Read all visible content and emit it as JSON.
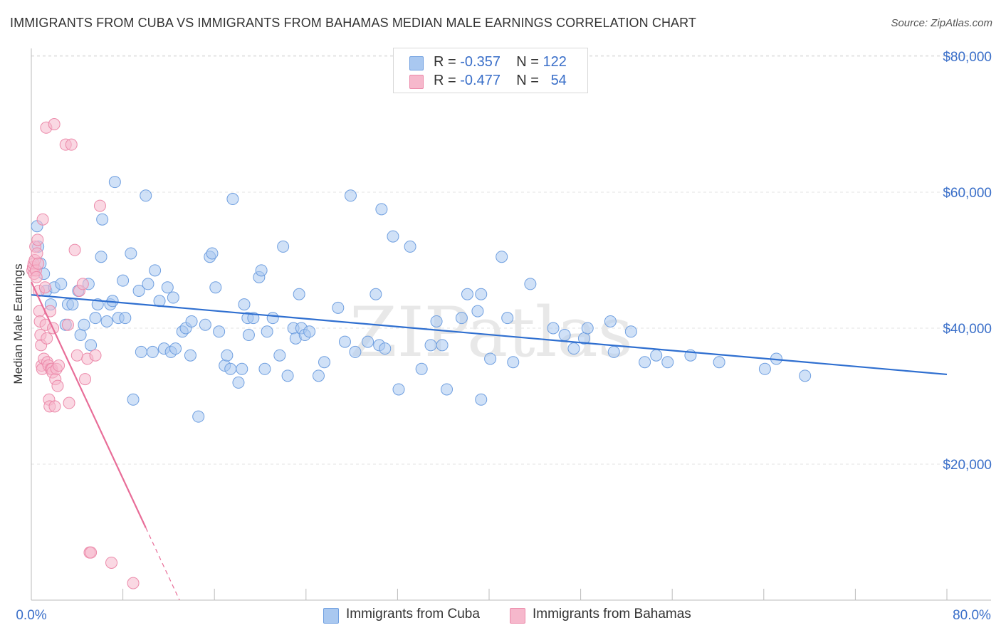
{
  "title": "IMMIGRANTS FROM CUBA VS IMMIGRANTS FROM BAHAMAS MEDIAN MALE EARNINGS CORRELATION CHART",
  "source": "Source: ZipAtlas.com",
  "watermark": "ZIPatlas",
  "legend": {
    "rows": [
      {
        "r_label": "R =",
        "r_value": "-0.357",
        "n_label": "N =",
        "n_value": "122"
      },
      {
        "r_label": "R =",
        "r_value": "-0.477",
        "n_label": "N =",
        "n_value": "54"
      }
    ]
  },
  "colors": {
    "cuba_fill": "#a9c8f0",
    "cuba_stroke": "#6f9fe0",
    "cuba_line": "#2f6fd0",
    "bahamas_fill": "#f6b8cc",
    "bahamas_stroke": "#ec8aaa",
    "bahamas_line": "#e86d98",
    "axis_text": "#3a6fc9",
    "grid": "#e3e3e3"
  },
  "chart_data": {
    "type": "scatter",
    "title": "IMMIGRANTS FROM CUBA VS IMMIGRANTS FROM BAHAMAS MEDIAN MALE EARNINGS CORRELATION CHART",
    "xlabel": "",
    "ylabel": "Median Male Earnings",
    "xlim": [
      0,
      80
    ],
    "ylim": [
      0,
      82000
    ],
    "x_tick_labels": [
      "0.0%",
      "80.0%"
    ],
    "y_ticks": [
      20000,
      40000,
      60000,
      80000
    ],
    "y_tick_labels": [
      "$20,000",
      "$40,000",
      "$60,000",
      "$80,000"
    ],
    "grid": true,
    "legend_position": "bottom",
    "series": [
      {
        "name": "Immigrants from Cuba",
        "r": -0.357,
        "n": 122,
        "trend": {
          "x": [
            0,
            80
          ],
          "y": [
            44900,
            33200
          ],
          "dashed_from": null
        },
        "points": [
          [
            0.5,
            55000
          ],
          [
            0.6,
            52000
          ],
          [
            0.8,
            49500
          ],
          [
            1.1,
            48000
          ],
          [
            1.3,
            45500
          ],
          [
            1.7,
            43500
          ],
          [
            2.0,
            46000
          ],
          [
            2.6,
            46500
          ],
          [
            3.0,
            40500
          ],
          [
            3.2,
            43500
          ],
          [
            3.6,
            43500
          ],
          [
            4.1,
            45500
          ],
          [
            4.3,
            39000
          ],
          [
            4.6,
            40500
          ],
          [
            5.0,
            46500
          ],
          [
            5.2,
            37500
          ],
          [
            5.6,
            41500
          ],
          [
            5.8,
            43500
          ],
          [
            6.1,
            50500
          ],
          [
            6.2,
            56000
          ],
          [
            6.6,
            41000
          ],
          [
            6.9,
            43500
          ],
          [
            7.1,
            44000
          ],
          [
            7.3,
            61500
          ],
          [
            7.6,
            41500
          ],
          [
            8.0,
            47000
          ],
          [
            8.2,
            41500
          ],
          [
            8.7,
            51000
          ],
          [
            8.9,
            29500
          ],
          [
            9.4,
            45500
          ],
          [
            9.6,
            36500
          ],
          [
            10.0,
            59500
          ],
          [
            10.2,
            46500
          ],
          [
            10.6,
            36500
          ],
          [
            10.8,
            48500
          ],
          [
            11.2,
            44000
          ],
          [
            11.6,
            37000
          ],
          [
            11.9,
            46000
          ],
          [
            12.2,
            36500
          ],
          [
            12.4,
            44500
          ],
          [
            12.6,
            37000
          ],
          [
            13.2,
            39500
          ],
          [
            13.5,
            40000
          ],
          [
            13.9,
            36000
          ],
          [
            14.0,
            41000
          ],
          [
            14.6,
            27000
          ],
          [
            15.2,
            40500
          ],
          [
            15.6,
            50500
          ],
          [
            15.8,
            51000
          ],
          [
            16.1,
            46000
          ],
          [
            16.4,
            39500
          ],
          [
            16.9,
            34500
          ],
          [
            17.1,
            36000
          ],
          [
            17.4,
            34000
          ],
          [
            17.6,
            59000
          ],
          [
            18.1,
            32000
          ],
          [
            18.4,
            34000
          ],
          [
            18.6,
            43500
          ],
          [
            18.9,
            41500
          ],
          [
            19.0,
            39000
          ],
          [
            19.4,
            41500
          ],
          [
            19.9,
            47500
          ],
          [
            20.1,
            48500
          ],
          [
            20.4,
            34000
          ],
          [
            20.6,
            39500
          ],
          [
            21.1,
            41500
          ],
          [
            21.7,
            36000
          ],
          [
            22.0,
            52000
          ],
          [
            22.4,
            33000
          ],
          [
            22.9,
            40000
          ],
          [
            23.1,
            38500
          ],
          [
            23.4,
            45000
          ],
          [
            23.6,
            40000
          ],
          [
            23.9,
            39000
          ],
          [
            24.3,
            39500
          ],
          [
            25.1,
            33000
          ],
          [
            25.6,
            35000
          ],
          [
            26.8,
            43000
          ],
          [
            27.4,
            38000
          ],
          [
            27.9,
            59500
          ],
          [
            28.3,
            36500
          ],
          [
            29.4,
            38000
          ],
          [
            30.1,
            45000
          ],
          [
            30.4,
            37500
          ],
          [
            30.6,
            57500
          ],
          [
            30.9,
            37000
          ],
          [
            31.6,
            53500
          ],
          [
            32.1,
            31000
          ],
          [
            33.1,
            52000
          ],
          [
            34.1,
            34000
          ],
          [
            34.9,
            37500
          ],
          [
            35.4,
            41000
          ],
          [
            35.9,
            37500
          ],
          [
            36.3,
            31000
          ],
          [
            37.6,
            41500
          ],
          [
            38.1,
            45000
          ],
          [
            39.0,
            42500
          ],
          [
            39.3,
            29500
          ],
          [
            39.3,
            45000
          ],
          [
            40.1,
            35500
          ],
          [
            41.1,
            50500
          ],
          [
            41.6,
            41500
          ],
          [
            42.1,
            35000
          ],
          [
            43.6,
            46500
          ],
          [
            45.6,
            40000
          ],
          [
            46.6,
            39000
          ],
          [
            47.4,
            37000
          ],
          [
            48.3,
            38500
          ],
          [
            48.6,
            40000
          ],
          [
            50.6,
            41000
          ],
          [
            50.9,
            36500
          ],
          [
            52.4,
            39500
          ],
          [
            53.6,
            35000
          ],
          [
            54.6,
            36000
          ],
          [
            55.6,
            35000
          ],
          [
            57.6,
            36000
          ],
          [
            60.1,
            35000
          ],
          [
            64.1,
            34000
          ],
          [
            65.1,
            35500
          ],
          [
            67.6,
            33000
          ]
        ]
      },
      {
        "name": "Immigrants from Bahamas",
        "r": -0.477,
        "n": 54,
        "trend": {
          "x": [
            0,
            13.5
          ],
          "y": [
            46800,
            -2000
          ],
          "dashed_from": 10
        },
        "points": [
          [
            0.1,
            48500
          ],
          [
            0.15,
            49000
          ],
          [
            0.2,
            49500
          ],
          [
            0.25,
            48000
          ],
          [
            0.3,
            50000
          ],
          [
            0.35,
            52000
          ],
          [
            0.4,
            48500
          ],
          [
            0.45,
            47500
          ],
          [
            0.5,
            51000
          ],
          [
            0.55,
            53000
          ],
          [
            0.6,
            49500
          ],
          [
            0.65,
            45500
          ],
          [
            0.7,
            42500
          ],
          [
            0.75,
            41000
          ],
          [
            0.8,
            39000
          ],
          [
            0.85,
            37500
          ],
          [
            0.9,
            34500
          ],
          [
            0.95,
            34000
          ],
          [
            1.0,
            56000
          ],
          [
            1.1,
            35500
          ],
          [
            1.2,
            46000
          ],
          [
            1.25,
            40500
          ],
          [
            1.3,
            69500
          ],
          [
            1.35,
            38500
          ],
          [
            1.4,
            35000
          ],
          [
            1.5,
            34500
          ],
          [
            1.55,
            29500
          ],
          [
            1.6,
            28500
          ],
          [
            1.65,
            42500
          ],
          [
            1.7,
            34000
          ],
          [
            1.8,
            34000
          ],
          [
            1.85,
            33500
          ],
          [
            1.9,
            40000
          ],
          [
            2.0,
            70000
          ],
          [
            2.05,
            28500
          ],
          [
            2.1,
            32500
          ],
          [
            2.2,
            34000
          ],
          [
            2.3,
            31500
          ],
          [
            2.4,
            34500
          ],
          [
            3.0,
            67000
          ],
          [
            3.2,
            40500
          ],
          [
            3.3,
            29000
          ],
          [
            3.5,
            67000
          ],
          [
            3.8,
            51500
          ],
          [
            4.0,
            36000
          ],
          [
            4.2,
            45500
          ],
          [
            4.5,
            46500
          ],
          [
            4.7,
            32500
          ],
          [
            4.9,
            35500
          ],
          [
            5.1,
            7000
          ],
          [
            5.2,
            7000
          ],
          [
            5.6,
            36000
          ],
          [
            6.0,
            58000
          ],
          [
            7.0,
            5500
          ],
          [
            8.9,
            2500
          ]
        ]
      }
    ]
  },
  "bottom_legend": [
    "Immigrants from Cuba",
    "Immigrants from Bahamas"
  ]
}
